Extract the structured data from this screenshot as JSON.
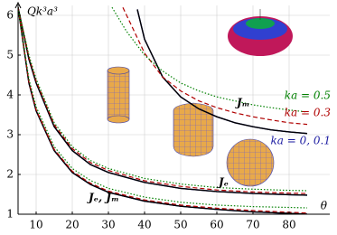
{
  "chart_data": {
    "type": "line",
    "ylabel": "Qk³a³",
    "xlim": [
      5,
      86
    ],
    "ylim": [
      1,
      6.25
    ],
    "xticks": [
      10,
      20,
      30,
      40,
      50,
      60,
      70,
      80
    ],
    "yticks": [
      1,
      2,
      3,
      4,
      5,
      6
    ],
    "grid": true,
    "series": [
      {
        "color": "#1a1aa0",
        "dash": "solid",
        "x": [
          38,
          40,
          45,
          50,
          55,
          60,
          65,
          70,
          75,
          80,
          85
        ],
        "values": [
          6.15,
          5.4,
          4.45,
          3.95,
          3.65,
          3.45,
          3.3,
          3.2,
          3.12,
          3.07,
          3.03
        ]
      },
      {
        "color": "#000000",
        "dash": "solid",
        "x": [
          38,
          40,
          45,
          50,
          55,
          60,
          65,
          70,
          75,
          80,
          85
        ],
        "values": [
          6.15,
          5.4,
          4.45,
          3.95,
          3.65,
          3.45,
          3.3,
          3.2,
          3.12,
          3.07,
          3.03
        ]
      },
      {
        "color": "#b00000",
        "dash": "dashed",
        "x": [
          34,
          40,
          45,
          50,
          55,
          60,
          65,
          70,
          75,
          80,
          85
        ],
        "values": [
          6.2,
          5.05,
          4.45,
          4.1,
          3.85,
          3.68,
          3.55,
          3.45,
          3.37,
          3.3,
          3.26
        ]
      },
      {
        "color": "#008000",
        "dash": "dotted",
        "x": [
          31,
          35,
          40,
          45,
          50,
          55,
          60,
          65,
          70,
          75,
          80,
          85
        ],
        "values": [
          6.2,
          5.6,
          5.0,
          4.6,
          4.3,
          4.1,
          3.95,
          3.85,
          3.75,
          3.68,
          3.62,
          3.57
        ]
      },
      {
        "color": "#1a1aa0",
        "dash": "solid",
        "x": [
          5,
          8,
          10,
          15,
          20,
          25,
          30,
          40,
          50,
          60,
          70,
          80,
          85
        ],
        "values": [
          6.2,
          4.9,
          4.3,
          3.2,
          2.6,
          2.25,
          2.05,
          1.8,
          1.65,
          1.57,
          1.52,
          1.49,
          1.48
        ]
      },
      {
        "color": "#000000",
        "dash": "solid",
        "x": [
          5,
          8,
          10,
          15,
          20,
          25,
          30,
          40,
          50,
          60,
          70,
          80,
          85
        ],
        "values": [
          6.2,
          4.9,
          4.3,
          3.2,
          2.6,
          2.25,
          2.05,
          1.8,
          1.65,
          1.57,
          1.52,
          1.49,
          1.48
        ]
      },
      {
        "color": "#b00000",
        "dash": "dashed",
        "x": [
          5,
          8,
          10,
          15,
          20,
          25,
          30,
          40,
          50,
          60,
          70,
          80,
          85
        ],
        "values": [
          6.2,
          4.95,
          4.35,
          3.25,
          2.65,
          2.3,
          2.1,
          1.84,
          1.7,
          1.61,
          1.56,
          1.53,
          1.52
        ]
      },
      {
        "color": "#008000",
        "dash": "dotted",
        "x": [
          5,
          8,
          10,
          15,
          20,
          25,
          30,
          40,
          50,
          60,
          70,
          80,
          85
        ],
        "values": [
          6.2,
          5.0,
          4.4,
          3.3,
          2.7,
          2.35,
          2.15,
          1.9,
          1.76,
          1.67,
          1.63,
          1.6,
          1.59
        ]
      },
      {
        "color": "#1a1aa0",
        "dash": "solid",
        "x": [
          5,
          8,
          10,
          15,
          20,
          25,
          30,
          40,
          50,
          60,
          70,
          80,
          85
        ],
        "values": [
          6.2,
          4.3,
          3.6,
          2.6,
          2.05,
          1.75,
          1.55,
          1.33,
          1.2,
          1.12,
          1.06,
          1.02,
          1.0
        ]
      },
      {
        "color": "#000000",
        "dash": "solid",
        "x": [
          5,
          8,
          10,
          15,
          20,
          25,
          30,
          40,
          50,
          60,
          70,
          80,
          85
        ],
        "values": [
          6.2,
          4.3,
          3.6,
          2.6,
          2.05,
          1.75,
          1.55,
          1.33,
          1.2,
          1.12,
          1.06,
          1.02,
          1.0
        ]
      },
      {
        "color": "#b00000",
        "dash": "dashed",
        "x": [
          5,
          8,
          10,
          15,
          20,
          25,
          30,
          40,
          50,
          60,
          70,
          80,
          85
        ],
        "values": [
          6.2,
          4.33,
          3.63,
          2.63,
          2.08,
          1.78,
          1.58,
          1.36,
          1.23,
          1.15,
          1.09,
          1.05,
          1.03
        ]
      },
      {
        "color": "#008000",
        "dash": "dotted",
        "x": [
          5,
          8,
          10,
          15,
          20,
          25,
          30,
          40,
          50,
          60,
          70,
          80,
          85
        ],
        "values": [
          6.2,
          4.4,
          3.7,
          2.7,
          2.15,
          1.85,
          1.65,
          1.43,
          1.3,
          1.23,
          1.19,
          1.17,
          1.16
        ]
      }
    ],
    "annotations": [
      {
        "text": "Jₘ",
        "color": "#000000"
      },
      {
        "text": "ka = 0.5",
        "color": "#008000"
      },
      {
        "text": "ka = 0.3",
        "color": "#b00000"
      },
      {
        "text": "ka = 0, 0.1",
        "color": "#1a1aa0"
      },
      {
        "text": "Jₑ",
        "color": "#000000"
      },
      {
        "text": "Jₑ, Jₘ",
        "color": "#000000"
      },
      {
        "text": "θ",
        "color": "#000000"
      }
    ]
  }
}
